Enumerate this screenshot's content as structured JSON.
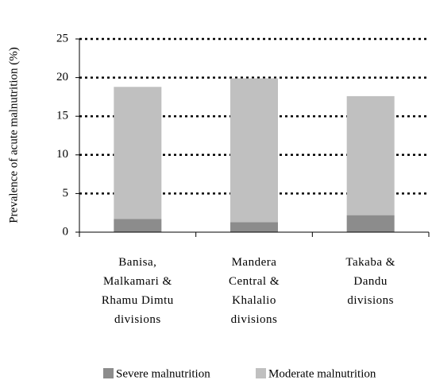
{
  "chart_data": {
    "type": "stacked_bar",
    "y_label": "Prevalence of acute malnutrition (%)",
    "categories": [
      "Banisa, Malkamari & Rhamu Dimtu divisions",
      "Mandera Central & Khalalio divisions",
      "Takaba & Dandu divisions"
    ],
    "series": [
      {
        "name": "Severe malnutrition",
        "color": "#8c8c8c",
        "values": [
          1.7,
          1.3,
          2.2
        ]
      },
      {
        "name": "Moderate malnutrition",
        "color": "#c0c0c0",
        "values": [
          17.1,
          18.6,
          15.4
        ]
      }
    ],
    "ylim": [
      0,
      25
    ],
    "yticks": [
      0,
      5,
      10,
      15,
      20,
      25
    ],
    "grid": true,
    "legend": "bottom"
  }
}
